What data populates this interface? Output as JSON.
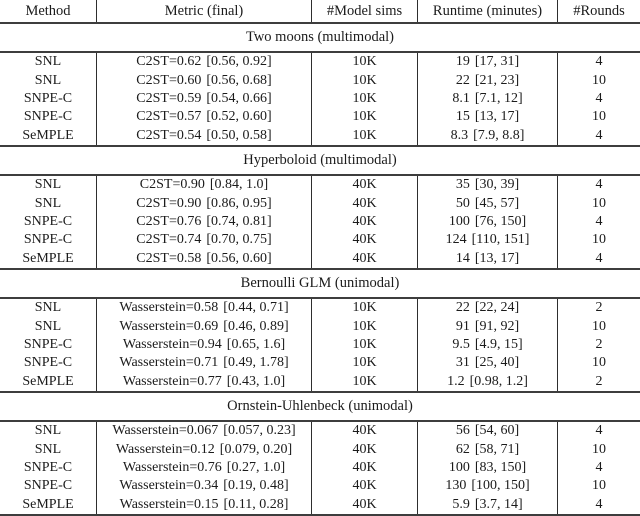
{
  "table": {
    "columns": [
      {
        "label": "Method"
      },
      {
        "label": "Metric (final)"
      },
      {
        "label": "#Model sims"
      },
      {
        "label": "Runtime (minutes)"
      },
      {
        "label": "#Rounds"
      }
    ],
    "sections": [
      {
        "title": "Two moons (multimodal)",
        "rows": [
          {
            "method": "SNL",
            "metric_prefix": "C2ST=",
            "metric_value": "0.62",
            "metric_bold": false,
            "metric_ci": "[0.56, 0.92]",
            "sims": "10K",
            "runtime_value": "19",
            "runtime_bold": false,
            "runtime_ci": "[17, 31]",
            "rounds": "4"
          },
          {
            "method": "SNL",
            "metric_prefix": "C2ST=",
            "metric_value": "0.60",
            "metric_bold": false,
            "metric_ci": "[0.56, 0.68]",
            "sims": "10K",
            "runtime_value": "22",
            "runtime_bold": false,
            "runtime_ci": "[21, 23]",
            "rounds": "10"
          },
          {
            "method": "SNPE-C",
            "metric_prefix": "C2ST=",
            "metric_value": "0.59",
            "metric_bold": false,
            "metric_ci": "[0.54, 0.66]",
            "sims": "10K",
            "runtime_value": "8.1",
            "runtime_bold": true,
            "runtime_ci": "[7.1, 12]",
            "rounds": "4"
          },
          {
            "method": "SNPE-C",
            "metric_prefix": "C2ST=",
            "metric_value": "0.57",
            "metric_bold": false,
            "metric_ci": "[0.52, 0.60]",
            "sims": "10K",
            "runtime_value": "15",
            "runtime_bold": false,
            "runtime_ci": "[13, 17]",
            "rounds": "10"
          },
          {
            "method": "SeMPLE",
            "metric_prefix": "C2ST=",
            "metric_value": "0.54",
            "metric_bold": true,
            "metric_ci": "[0.50, 0.58]",
            "sims": "10K",
            "runtime_value": "8.3",
            "runtime_bold": false,
            "runtime_ci": "[7.9, 8.8]",
            "rounds": "4"
          }
        ]
      },
      {
        "title": "Hyperboloid (multimodal)",
        "rows": [
          {
            "method": "SNL",
            "metric_prefix": "C2ST=",
            "metric_value": "0.90",
            "metric_bold": false,
            "metric_ci": "[0.84, 1.0]",
            "sims": "40K",
            "runtime_value": "35",
            "runtime_bold": false,
            "runtime_ci": "[30, 39]",
            "rounds": "4"
          },
          {
            "method": "SNL",
            "metric_prefix": "C2ST=",
            "metric_value": "0.90",
            "metric_bold": false,
            "metric_ci": "[0.86, 0.95]",
            "sims": "40K",
            "runtime_value": "50",
            "runtime_bold": false,
            "runtime_ci": "[45, 57]",
            "rounds": "10"
          },
          {
            "method": "SNPE-C",
            "metric_prefix": "C2ST=",
            "metric_value": "0.76",
            "metric_bold": false,
            "metric_ci": "[0.74, 0.81]",
            "sims": "40K",
            "runtime_value": "100",
            "runtime_bold": false,
            "runtime_ci": "[76, 150]",
            "rounds": "4"
          },
          {
            "method": "SNPE-C",
            "metric_prefix": "C2ST=",
            "metric_value": "0.74",
            "metric_bold": false,
            "metric_ci": "[0.70, 0.75]",
            "sims": "40K",
            "runtime_value": "124",
            "runtime_bold": false,
            "runtime_ci": "[110, 151]",
            "rounds": "10"
          },
          {
            "method": "SeMPLE",
            "metric_prefix": "C2ST=",
            "metric_value": "0.58",
            "metric_bold": true,
            "metric_ci": "[0.56, 0.60]",
            "sims": "40K",
            "runtime_value": "14",
            "runtime_bold": true,
            "runtime_ci": "[13, 17]",
            "rounds": "4"
          }
        ]
      },
      {
        "title": "Bernoulli GLM (unimodal)",
        "rows": [
          {
            "method": "SNL",
            "metric_prefix": "Wasserstein=",
            "metric_value": "0.58",
            "metric_bold": true,
            "metric_ci": "[0.44, 0.71]",
            "sims": "10K",
            "runtime_value": "22",
            "runtime_bold": false,
            "runtime_ci": "[22, 24]",
            "rounds": "2"
          },
          {
            "method": "SNL",
            "metric_prefix": "Wasserstein=",
            "metric_value": "0.69",
            "metric_bold": false,
            "metric_ci": "[0.46, 0.89]",
            "sims": "10K",
            "runtime_value": "91",
            "runtime_bold": false,
            "runtime_ci": "[91, 92]",
            "rounds": "10"
          },
          {
            "method": "SNPE-C",
            "metric_prefix": "Wasserstein=",
            "metric_value": "0.94",
            "metric_bold": false,
            "metric_ci": "[0.65, 1.6]",
            "sims": "10K",
            "runtime_value": "9.5",
            "runtime_bold": false,
            "runtime_ci": "[4.9, 15]",
            "rounds": "2"
          },
          {
            "method": "SNPE-C",
            "metric_prefix": "Wasserstein=",
            "metric_value": "0.71",
            "metric_bold": false,
            "metric_ci": "[0.49, 1.78]",
            "sims": "10K",
            "runtime_value": "31",
            "runtime_bold": false,
            "runtime_ci": "[25, 40]",
            "rounds": "10"
          },
          {
            "method": "SeMPLE",
            "metric_prefix": "Wasserstein=",
            "metric_value": "0.77",
            "metric_bold": false,
            "metric_ci": "[0.43, 1.0]",
            "sims": "10K",
            "runtime_value": "1.2",
            "runtime_bold": true,
            "runtime_ci": "[0.98, 1.2]",
            "rounds": "2"
          }
        ]
      },
      {
        "title": "Ornstein-Uhlenbeck (unimodal)",
        "rows": [
          {
            "method": "SNL",
            "metric_prefix": "Wasserstein=",
            "metric_value": "0.067",
            "metric_bold": true,
            "metric_ci": "[0.057, 0.23]",
            "sims": "40K",
            "runtime_value": "56",
            "runtime_bold": false,
            "runtime_ci": "[54, 60]",
            "rounds": "4"
          },
          {
            "method": "SNL",
            "metric_prefix": "Wasserstein=",
            "metric_value": "0.12",
            "metric_bold": false,
            "metric_ci": "[0.079, 0.20]",
            "sims": "40K",
            "runtime_value": "62",
            "runtime_bold": false,
            "runtime_ci": "[58, 71]",
            "rounds": "10"
          },
          {
            "method": "SNPE-C",
            "metric_prefix": "Wasserstein=",
            "metric_value": "0.76",
            "metric_bold": false,
            "metric_ci": "[0.27, 1.0]",
            "sims": "40K",
            "runtime_value": "100",
            "runtime_bold": false,
            "runtime_ci": "[83, 150]",
            "rounds": "4"
          },
          {
            "method": "SNPE-C",
            "metric_prefix": "Wasserstein=",
            "metric_value": "0.34",
            "metric_bold": false,
            "metric_ci": "[0.19, 0.48]",
            "sims": "40K",
            "runtime_value": "130",
            "runtime_bold": false,
            "runtime_ci": "[100, 150]",
            "rounds": "10"
          },
          {
            "method": "SeMPLE",
            "metric_prefix": "Wasserstein=",
            "metric_value": "0.15",
            "metric_bold": false,
            "metric_ci": "[0.11, 0.28]",
            "sims": "40K",
            "runtime_value": "5.9",
            "runtime_bold": true,
            "runtime_ci": "[3.7, 14]",
            "rounds": "4"
          }
        ]
      }
    ]
  }
}
